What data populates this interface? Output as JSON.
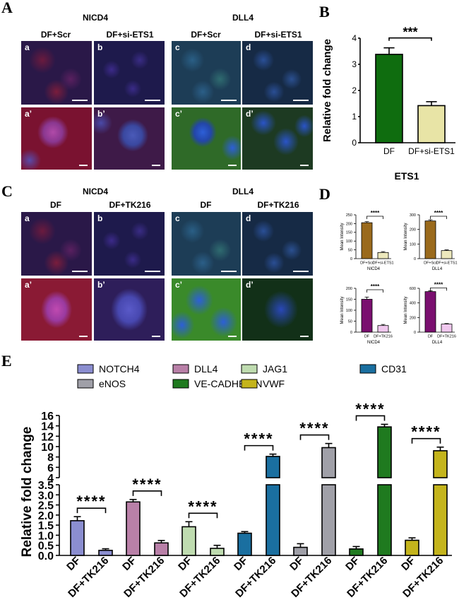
{
  "panels": {
    "A": {
      "letter": "A",
      "group_left": "NICD4",
      "group_right": "DLL4",
      "cols": [
        "DF+Scr",
        "DF+si-ETS1",
        "DF+Scr",
        "DF+si-ETS1"
      ],
      "tags": [
        "a",
        "b",
        "c",
        "d",
        "a’",
        "b’",
        "c’",
        "d’"
      ]
    },
    "C": {
      "letter": "C",
      "group_left": "NICD4",
      "group_right": "DLL4",
      "cols": [
        "DF",
        "DF+TK216",
        "DF",
        "DF+TK216"
      ],
      "tags": [
        "a",
        "b",
        "c",
        "d",
        "a’",
        "b’",
        "c’",
        "d’"
      ]
    },
    "B": {
      "letter": "B"
    },
    "D": {
      "letter": "D"
    },
    "E": {
      "letter": "E"
    }
  },
  "colors": {
    "green": "#0f6d0f",
    "beige": "#e8e4a6",
    "brown": "#9a6a1c",
    "lightbeige": "#ece8bc",
    "purple": "#7a0f6f",
    "pink": "#f0c8ee"
  },
  "chart_data": [
    {
      "id": "B",
      "type": "bar",
      "categories": [
        "DF",
        "DF+si-ETS1"
      ],
      "values": [
        3.38,
        1.42
      ],
      "errors": [
        0.25,
        0.15
      ],
      "xlabel": "ETS1",
      "ylabel": "Relative fold change",
      "ylim": [
        0,
        4
      ],
      "yticks": [
        "0",
        "1",
        "2",
        "3",
        "4"
      ],
      "significance": "***",
      "bar_colors": [
        "#0f6d0f",
        "#e8e4a6"
      ]
    },
    {
      "id": "D1",
      "type": "bar",
      "categories": [
        "DF+Scr",
        "DF+si-ETS1"
      ],
      "values": [
        205,
        35
      ],
      "errors": [
        6,
        5
      ],
      "xlabel": "NICD4",
      "ylabel": "Mean Intensity",
      "ylim": [
        0,
        250
      ],
      "yticks": [
        "0",
        "50",
        "100",
        "150",
        "200",
        "250"
      ],
      "significance": "****",
      "bar_colors": [
        "#9a6a1c",
        "#ece8bc"
      ]
    },
    {
      "id": "D2",
      "type": "bar",
      "categories": [
        "DF+Scr",
        "DF+si-ETS1"
      ],
      "values": [
        258,
        55
      ],
      "errors": [
        8,
        5
      ],
      "xlabel": "DLL4",
      "ylabel": "Mean Intensity",
      "ylim": [
        0,
        300
      ],
      "yticks": [
        "0",
        "100",
        "200",
        "300"
      ],
      "significance": "****",
      "bar_colors": [
        "#9a6a1c",
        "#ece8bc"
      ]
    },
    {
      "id": "D3",
      "type": "bar",
      "categories": [
        "DF",
        "DF+TK216"
      ],
      "values": [
        150,
        30
      ],
      "errors": [
        10,
        5
      ],
      "xlabel": "NICD4",
      "ylabel": "Mean Intensity",
      "ylim": [
        0,
        200
      ],
      "yticks": [
        "0",
        "50",
        "100",
        "150",
        "200"
      ],
      "significance": "****",
      "bar_colors": [
        "#7a0f6f",
        "#f0c8ee"
      ]
    },
    {
      "id": "D4",
      "type": "bar",
      "categories": [
        "DF",
        "DF+TK216"
      ],
      "values": [
        555,
        110
      ],
      "errors": [
        12,
        8
      ],
      "xlabel": "DLL4",
      "ylabel": "Mean Intensity",
      "ylim": [
        0,
        600
      ],
      "yticks": [
        "0",
        "200",
        "400",
        "600"
      ],
      "significance": "****",
      "bar_colors": [
        "#7a0f6f",
        "#f0c8ee"
      ]
    },
    {
      "id": "E",
      "type": "bar",
      "categories": [
        "DF",
        "DF+TK216"
      ],
      "ylabel": "Relative fold change",
      "broken_axis": {
        "lower": [
          0,
          3.5
        ],
        "upper": [
          3.5,
          16
        ]
      },
      "yticks_lower": [
        "0.0",
        "0.5",
        "1.0",
        "1.5",
        "2.0",
        "2.5",
        "3.0",
        "3.5"
      ],
      "yticks_upper": [
        "4",
        "6",
        "8",
        "10",
        "12",
        "14",
        "16"
      ],
      "legend": [
        "NOTCH4",
        "DLL4",
        "JAG1",
        "CD31",
        "eNOS",
        "VE-CADHERIN",
        "VWF"
      ],
      "series": [
        {
          "name": "NOTCH4",
          "values": [
            1.72,
            0.25
          ],
          "errors": [
            0.2,
            0.08
          ],
          "colors": [
            "#8b8ed0",
            "#8b8ed0"
          ]
        },
        {
          "name": "DLL4",
          "values": [
            2.65,
            0.62
          ],
          "errors": [
            0.12,
            0.12
          ],
          "colors": [
            "#b980a8",
            "#b980a8"
          ]
        },
        {
          "name": "JAG1",
          "values": [
            1.42,
            0.35
          ],
          "errors": [
            0.25,
            0.15
          ],
          "colors": [
            "#bfdcb0",
            "#bfdcb0"
          ]
        },
        {
          "name": "CD31",
          "values": [
            1.1,
            8.1
          ],
          "errors": [
            0.08,
            0.45
          ],
          "colors": [
            "#1a6fa0",
            "#1a6fa0"
          ]
        },
        {
          "name": "eNOS",
          "values": [
            0.4,
            9.8
          ],
          "errors": [
            0.18,
            0.8
          ],
          "colors": [
            "#a0a0a8",
            "#a0a0a8"
          ]
        },
        {
          "name": "VE-CADHERIN",
          "values": [
            0.32,
            13.8
          ],
          "errors": [
            0.12,
            0.5
          ],
          "colors": [
            "#1f7a1f",
            "#1f7a1f"
          ]
        },
        {
          "name": "VWF",
          "values": [
            0.75,
            9.2
          ],
          "errors": [
            0.12,
            0.7
          ],
          "colors": [
            "#c4b41c",
            "#c4b41c"
          ]
        }
      ],
      "significance": "****"
    }
  ]
}
